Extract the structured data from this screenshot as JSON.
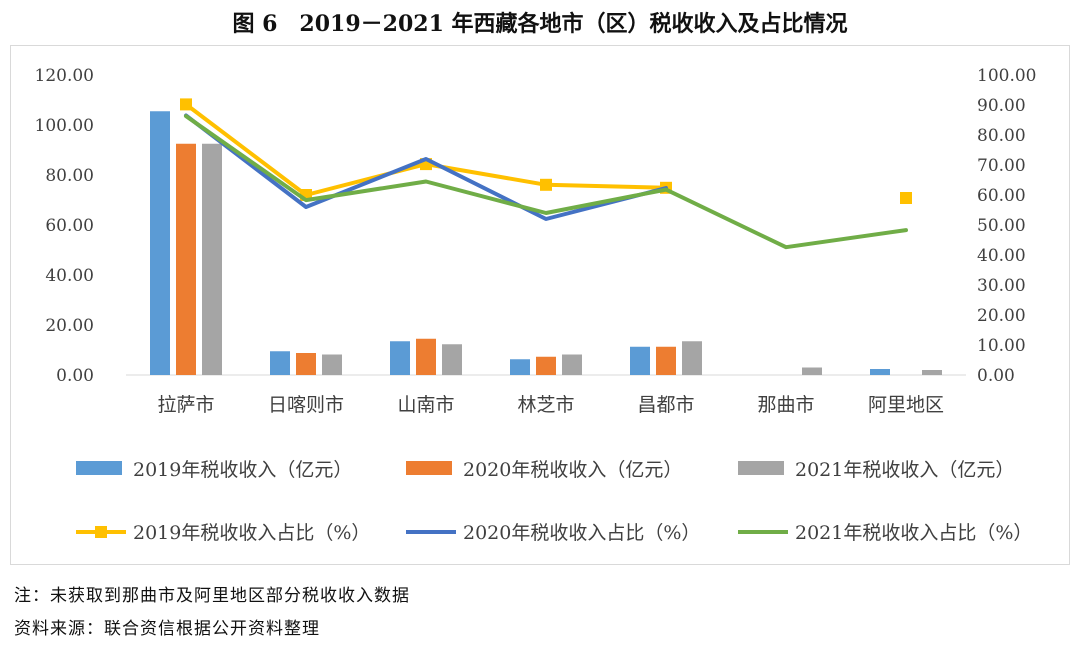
{
  "title": "图 6　2019－2021 年西藏各地市（区）税收收入及占比情况",
  "notes": {
    "note": "注：未获取到那曲市及阿里地区部分税收收入数据",
    "source": "资料来源：联合资信根据公开资料整理"
  },
  "colors": {
    "bar2019": "#5b9bd5",
    "bar2020": "#ed7d31",
    "bar2021": "#a5a5a5",
    "line2019": "#ffc000",
    "line2020": "#4472c4",
    "line2021": "#70ad47",
    "axis": "#d9d9d9",
    "text": "#404040"
  },
  "chart_data": {
    "type": "bar",
    "title": "图 6　2019－2021 年西藏各地市（区）税收收入及占比情况",
    "categories": [
      "拉萨市",
      "日喀则市",
      "山南市",
      "林芝市",
      "昌都市",
      "那曲市",
      "阿里地区"
    ],
    "left_axis": {
      "ylim": [
        0,
        120
      ],
      "ticks": [
        "0.00",
        "20.00",
        "40.00",
        "60.00",
        "80.00",
        "100.00",
        "120.00"
      ]
    },
    "right_axis": {
      "ylim": [
        0,
        100
      ],
      "ticks": [
        "0.00",
        "10.00",
        "20.00",
        "30.00",
        "40.00",
        "50.00",
        "60.00",
        "70.00",
        "80.00",
        "90.00",
        "100.00"
      ]
    },
    "bar_series": [
      {
        "name": "2019年税收收入（亿元）",
        "values": [
          105.5,
          9.5,
          13.5,
          6.3,
          11.3,
          null,
          2.4
        ]
      },
      {
        "name": "2020年税收收入（亿元）",
        "values": [
          92.5,
          8.8,
          14.5,
          7.3,
          11.3,
          null,
          null
        ]
      },
      {
        "name": "2021年税收收入（亿元）",
        "values": [
          92.5,
          8.2,
          12.3,
          8.2,
          13.5,
          3.0,
          2.0
        ]
      }
    ],
    "line_series": [
      {
        "name": "2019年税收收入占比（%）",
        "values": [
          90.2,
          60.0,
          70.3,
          63.4,
          62.4,
          null,
          59.0
        ],
        "isolated_marker_index": 6
      },
      {
        "name": "2020年税收收入占比（%）",
        "values": [
          86.5,
          56.0,
          72.0,
          52.0,
          62.3,
          null,
          null
        ]
      },
      {
        "name": "2021年税收收入占比（%）",
        "values": [
          86.3,
          58.3,
          64.5,
          54.0,
          61.8,
          42.6,
          48.3
        ]
      }
    ],
    "legend_position": "bottom",
    "grid": false
  }
}
